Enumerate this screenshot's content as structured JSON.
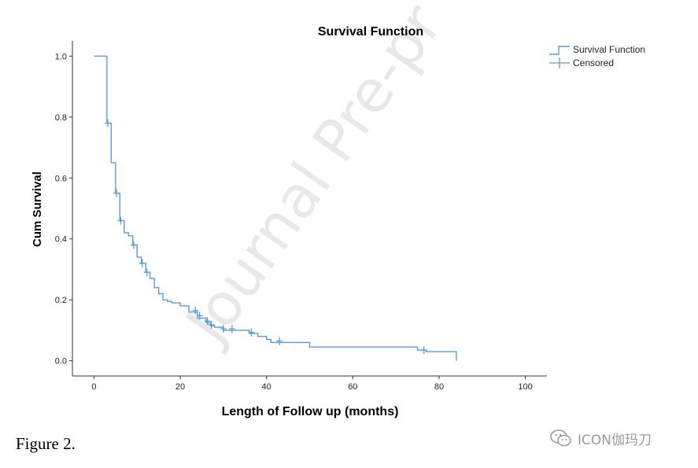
{
  "chart_data": {
    "type": "line",
    "title": "Survival Function",
    "xlabel": "Length of Follow up (months)",
    "ylabel": "Cum Survival",
    "xlim": [
      -5,
      105
    ],
    "ylim": [
      -0.05,
      1.05
    ],
    "x_ticks": [
      0,
      20,
      40,
      60,
      80,
      100
    ],
    "y_ticks": [
      0.0,
      0.2,
      0.4,
      0.6,
      0.8,
      1.0
    ],
    "x_tick_labels": [
      "0",
      "20",
      "40",
      "60",
      "80",
      "100"
    ],
    "y_tick_labels": [
      "0.0",
      "0.2",
      "0.4",
      "0.6",
      "0.8",
      "1.0"
    ],
    "grid": false,
    "legend_position": "top-right",
    "legend": [
      "Survival Function",
      "Censored"
    ],
    "series_color": "#5b9bd5",
    "series": [
      {
        "name": "Survival Function",
        "step": "post",
        "x": [
          0,
          3,
          4,
          5,
          6,
          7,
          8,
          9,
          10,
          11,
          12,
          13,
          14,
          15,
          16,
          17,
          18,
          20,
          22,
          24,
          26,
          27,
          28,
          30,
          36,
          38,
          40,
          41,
          43,
          50,
          75,
          77,
          84
        ],
        "y": [
          1.0,
          0.78,
          0.65,
          0.55,
          0.46,
          0.42,
          0.41,
          0.38,
          0.34,
          0.32,
          0.29,
          0.27,
          0.24,
          0.22,
          0.2,
          0.195,
          0.19,
          0.18,
          0.16,
          0.14,
          0.125,
          0.115,
          0.11,
          0.1,
          0.09,
          0.08,
          0.07,
          0.06,
          0.06,
          0.045,
          0.035,
          0.03,
          0.0
        ]
      }
    ],
    "censored": [
      {
        "x": 3.2,
        "y": 0.78
      },
      {
        "x": 5.2,
        "y": 0.55
      },
      {
        "x": 6.2,
        "y": 0.46
      },
      {
        "x": 9.2,
        "y": 0.38
      },
      {
        "x": 11.2,
        "y": 0.32
      },
      {
        "x": 12.3,
        "y": 0.29
      },
      {
        "x": 23.5,
        "y": 0.165
      },
      {
        "x": 24.5,
        "y": 0.148
      },
      {
        "x": 26.3,
        "y": 0.13
      },
      {
        "x": 27.2,
        "y": 0.118
      },
      {
        "x": 30.0,
        "y": 0.105
      },
      {
        "x": 32.0,
        "y": 0.105
      },
      {
        "x": 36.5,
        "y": 0.093
      },
      {
        "x": 43.0,
        "y": 0.065
      },
      {
        "x": 76.5,
        "y": 0.035
      }
    ]
  },
  "watermark": "Journal Pre-pr",
  "caption": "Figure 2.",
  "badge": {
    "text": "ICON伽玛刀",
    "icon": "wechat-icon"
  }
}
